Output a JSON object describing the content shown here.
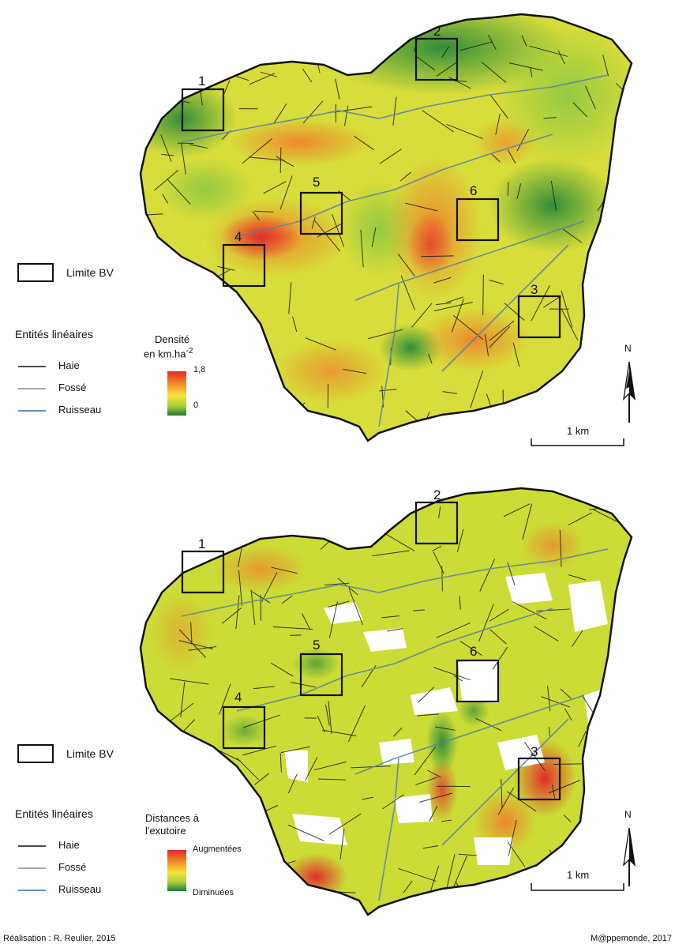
{
  "maps": [
    {
      "id": "density",
      "legend": {
        "boundary_label": "Limite BV",
        "linear_title": "Entités linéaires",
        "linear_items": [
          {
            "label": "Haie",
            "color": "#111111"
          },
          {
            "label": "Fossé",
            "color": "#8a8a8a"
          },
          {
            "label": "Ruisseau",
            "color": "#2f6db5"
          }
        ],
        "ramp_title_line1": "Densité",
        "ramp_title_line2": "en km.ha",
        "ramp_title_sup": "-2",
        "ramp_max": "1,8",
        "ramp_min": "0"
      },
      "boxes": [
        "1",
        "2",
        "3",
        "4",
        "5",
        "6"
      ],
      "north": "N",
      "scale": "1 km"
    },
    {
      "id": "distance",
      "legend": {
        "boundary_label": "Limite BV",
        "linear_title": "Entités linéaires",
        "linear_items": [
          {
            "label": "Haie",
            "color": "#111111"
          },
          {
            "label": "Fossé",
            "color": "#8a8a8a"
          },
          {
            "label": "Ruisseau",
            "color": "#2f6db5"
          }
        ],
        "ramp_title_line1": "Distances à",
        "ramp_title_line2": "l'exutoire",
        "ramp_max": "Augmentées",
        "ramp_min": "Diminuées"
      },
      "boxes": [
        "1",
        "2",
        "3",
        "4",
        "5",
        "6"
      ],
      "north": "N",
      "scale": "1 km"
    }
  ],
  "credits": {
    "left": "Réalisation : R. Reulier, 2015",
    "right": "M@ppemonde, 2017"
  },
  "colors": {
    "high": "#e2262a",
    "mid_high": "#f28c28",
    "mid": "#f4e33a",
    "mid_low": "#b7d433",
    "low": "#1f7a32"
  }
}
